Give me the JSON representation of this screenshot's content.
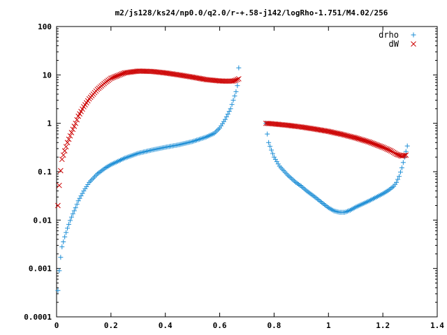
{
  "chart_data": {
    "type": "scatter",
    "title": "m2/js128/ks24/np0.0/q2.0/r-+.58-j142/logRho-1.751/M4.02/256",
    "xlabel": "",
    "ylabel": "",
    "xlim": [
      0,
      1.4
    ],
    "ylim": [
      0.0001,
      100
    ],
    "yscale": "log",
    "grid": false,
    "legend": "top-right",
    "x_ticks": [
      "0",
      "0.2",
      "0.4",
      "0.6",
      "0.8",
      "1",
      "1.2",
      "1.4"
    ],
    "y_ticks": [
      "0.0001",
      "0.001",
      "0.01",
      "0.1",
      "1",
      "10",
      "100"
    ],
    "series": [
      {
        "name": "drho",
        "marker": "plus",
        "color": "#1f8fd6",
        "segments": [
          {
            "x": [
              0.005,
              0.01,
              0.015,
              0.02,
              0.03,
              0.04,
              0.05,
              0.06,
              0.07,
              0.08,
              0.1,
              0.12,
              0.15,
              0.18,
              0.2,
              0.25,
              0.3,
              0.35,
              0.4,
              0.45,
              0.5,
              0.55,
              0.58,
              0.6,
              0.62,
              0.64,
              0.65,
              0.66,
              0.665,
              0.67
            ],
            "y": [
              0.00035,
              0.0009,
              0.0017,
              0.0028,
              0.0045,
              0.0068,
              0.0098,
              0.0135,
              0.018,
              0.025,
              0.04,
              0.06,
              0.09,
              0.12,
              0.14,
              0.19,
              0.24,
              0.28,
              0.32,
              0.36,
              0.42,
              0.52,
              0.62,
              0.8,
              1.2,
              2.0,
              3.0,
              4.5,
              6.0,
              14.0
            ]
          },
          {
            "x": [
              0.77,
              0.775,
              0.78,
              0.79,
              0.8,
              0.82,
              0.85,
              0.88,
              0.9,
              0.92,
              0.95,
              0.98,
              1.0,
              1.02,
              1.04,
              1.06,
              1.08,
              1.1,
              1.15,
              1.2,
              1.22,
              1.24,
              1.25,
              1.26,
              1.27,
              1.28,
              1.29
            ],
            "y": [
              1.0,
              0.6,
              0.4,
              0.28,
              0.2,
              0.13,
              0.085,
              0.06,
              0.05,
              0.04,
              0.03,
              0.022,
              0.018,
              0.0155,
              0.0145,
              0.0145,
              0.016,
              0.0185,
              0.025,
              0.035,
              0.041,
              0.05,
              0.06,
              0.08,
              0.12,
              0.2,
              0.34
            ]
          }
        ]
      },
      {
        "name": "dW",
        "marker": "cross",
        "color": "#cc0000",
        "segments": [
          {
            "x": [
              0.005,
              0.01,
              0.015,
              0.02,
              0.03,
              0.04,
              0.05,
              0.06,
              0.07,
              0.08,
              0.1,
              0.12,
              0.15,
              0.18,
              0.2,
              0.25,
              0.3,
              0.35,
              0.4,
              0.45,
              0.5,
              0.55,
              0.6,
              0.63,
              0.65,
              0.66,
              0.67
            ],
            "y": [
              0.02,
              0.052,
              0.105,
              0.18,
              0.27,
              0.4,
              0.55,
              0.75,
              1.0,
              1.4,
              2.2,
              3.2,
              5.0,
              7.0,
              8.5,
              11.0,
              12.0,
              11.8,
              11.0,
              10.0,
              9.0,
              8.0,
              7.5,
              7.4,
              7.5,
              7.8,
              8.3
            ]
          },
          {
            "x": [
              0.77,
              0.8,
              0.85,
              0.9,
              0.95,
              1.0,
              1.05,
              1.1,
              1.15,
              1.2,
              1.23,
              1.25,
              1.27,
              1.285
            ],
            "y": [
              1.0,
              0.97,
              0.91,
              0.84,
              0.76,
              0.68,
              0.59,
              0.5,
              0.41,
              0.32,
              0.27,
              0.23,
              0.21,
              0.22
            ]
          }
        ]
      }
    ]
  }
}
